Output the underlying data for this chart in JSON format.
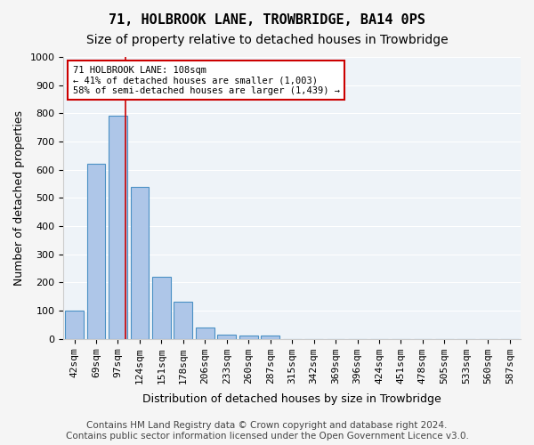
{
  "title1": "71, HOLBROOK LANE, TROWBRIDGE, BA14 0PS",
  "title2": "Size of property relative to detached houses in Trowbridge",
  "xlabel": "Distribution of detached houses by size in Trowbridge",
  "ylabel": "Number of detached properties",
  "bar_color": "#aec6e8",
  "bar_edge_color": "#4a90c4",
  "categories": [
    "42sqm",
    "69sqm",
    "97sqm",
    "124sqm",
    "151sqm",
    "178sqm",
    "206sqm",
    "233sqm",
    "260sqm",
    "287sqm",
    "315sqm",
    "342sqm",
    "369sqm",
    "396sqm",
    "424sqm",
    "451sqm",
    "478sqm",
    "505sqm",
    "533sqm",
    "560sqm",
    "587sqm"
  ],
  "values": [
    100,
    620,
    790,
    540,
    220,
    130,
    40,
    15,
    10,
    10,
    0,
    0,
    0,
    0,
    0,
    0,
    0,
    0,
    0,
    0,
    0
  ],
  "ylim": [
    0,
    1000
  ],
  "yticks": [
    0,
    100,
    200,
    300,
    400,
    500,
    600,
    700,
    800,
    900,
    1000
  ],
  "vline_x_index": 2.37,
  "vline_color": "#cc0000",
  "annotation_text": "71 HOLBROOK LANE: 108sqm\n← 41% of detached houses are smaller (1,003)\n58% of semi-detached houses are larger (1,439) →",
  "annotation_box_color": "#ffffff",
  "annotation_box_edge": "#cc0000",
  "footer1": "Contains HM Land Registry data © Crown copyright and database right 2024.",
  "footer2": "Contains public sector information licensed under the Open Government Licence v3.0.",
  "background_color": "#eef3f8",
  "grid_color": "#ffffff",
  "title1_fontsize": 11,
  "title2_fontsize": 10,
  "xlabel_fontsize": 9,
  "ylabel_fontsize": 9,
  "tick_fontsize": 8,
  "footer_fontsize": 7.5
}
